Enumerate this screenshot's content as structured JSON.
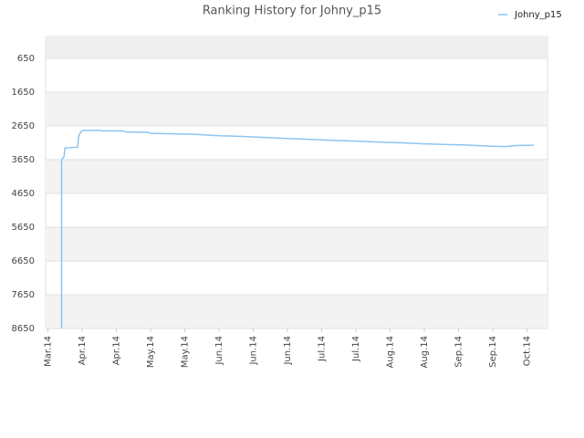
{
  "chart_data": {
    "type": "line",
    "title": "Ranking History for Johny_p15",
    "series": [
      {
        "name": "Johny_p15",
        "color": "#8ec4ef",
        "x": [
          6,
          6,
          7,
          7.5,
          13,
          13.5,
          14.5,
          15.5,
          23,
          24,
          33,
          34,
          44,
          45,
          65,
          75,
          85,
          95,
          105,
          115,
          125,
          135,
          145,
          155,
          165,
          175,
          185,
          195,
          200,
          205,
          213
        ],
        "values": [
          8650,
          3650,
          3570,
          3300,
          3280,
          2950,
          2820,
          2780,
          2780,
          2800,
          2800,
          2830,
          2840,
          2870,
          2900,
          2940,
          2960,
          2990,
          3020,
          3050,
          3080,
          3100,
          3130,
          3150,
          3180,
          3200,
          3220,
          3250,
          3260,
          3230,
          3220
        ]
      }
    ],
    "xlim": [
      -1,
      219
    ],
    "xticks": [
      {
        "value": 0,
        "label": "Mar.14"
      },
      {
        "value": 15,
        "label": "Apr.14"
      },
      {
        "value": 30,
        "label": "Apr.14"
      },
      {
        "value": 45,
        "label": "May.14"
      },
      {
        "value": 60,
        "label": "May.14"
      },
      {
        "value": 75,
        "label": "Jun.14"
      },
      {
        "value": 90,
        "label": "Jun.14"
      },
      {
        "value": 105,
        "label": "Jun.14"
      },
      {
        "value": 120,
        "label": "Jul.14"
      },
      {
        "value": 135,
        "label": "Jul.14"
      },
      {
        "value": 150,
        "label": "Aug.14"
      },
      {
        "value": 165,
        "label": "Aug.14"
      },
      {
        "value": 180,
        "label": "Sep.14"
      },
      {
        "value": 195,
        "label": "Sep.14"
      },
      {
        "value": 210,
        "label": "Oct.14"
      }
    ],
    "ylim": [
      8650,
      1
    ],
    "yticks": [
      650,
      1650,
      2650,
      3650,
      4650,
      5650,
      6650,
      7650,
      8650
    ],
    "grid": true,
    "legend": "top-right"
  }
}
